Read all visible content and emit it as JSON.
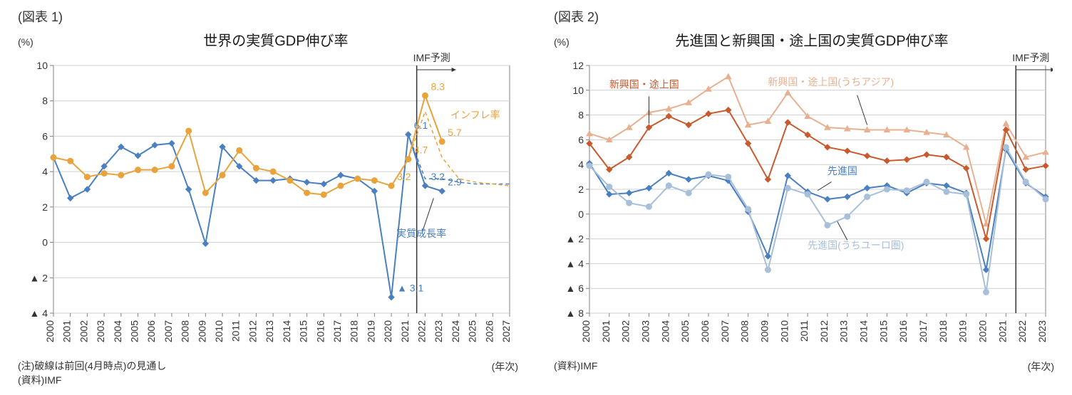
{
  "chart1": {
    "figLabel": "(図表 1)",
    "title": "世界の実質GDP伸び率",
    "yLabel": "(%)",
    "xLabel": "(年次)",
    "forecastLabel": "IMF予測",
    "series": {
      "realGrowth": {
        "label": "実質成長率",
        "color": "#4a7fc0",
        "marker": "diamond",
        "lineWidth": 2,
        "years": [
          2000,
          2001,
          2002,
          2003,
          2004,
          2005,
          2006,
          2007,
          2008,
          2009,
          2010,
          2011,
          2012,
          2013,
          2014,
          2015,
          2016,
          2017,
          2018,
          2019,
          2020,
          2021,
          2022,
          2023
        ],
        "values": [
          4.8,
          2.5,
          3.0,
          4.3,
          5.4,
          4.9,
          5.5,
          5.6,
          3.0,
          -0.07,
          5.4,
          4.3,
          3.5,
          3.5,
          3.6,
          3.4,
          3.3,
          3.8,
          3.6,
          2.9,
          -3.1,
          6.1,
          3.2,
          2.9
        ],
        "valueLabels": {
          "2020": "▲ 3.1",
          "2021": "6.1",
          "2022": "3.2",
          "2023": "2.9"
        }
      },
      "realGrowthDashed": {
        "color": "#4a7fc0",
        "dash": "5,4",
        "lineWidth": 1.5,
        "years": [
          2021,
          2022,
          2023,
          2024,
          2025,
          2026,
          2027
        ],
        "values": [
          6.1,
          3.6,
          3.6,
          3.4,
          3.3,
          3.3,
          3.3
        ]
      },
      "inflation": {
        "label": "インフレ率",
        "color": "#e8a33d",
        "marker": "circle",
        "lineWidth": 2,
        "years": [
          2000,
          2001,
          2002,
          2003,
          2004,
          2005,
          2006,
          2007,
          2008,
          2009,
          2010,
          2011,
          2012,
          2013,
          2014,
          2015,
          2016,
          2017,
          2018,
          2019,
          2020,
          2021,
          2022,
          2023
        ],
        "values": [
          4.8,
          4.6,
          3.7,
          3.9,
          3.8,
          4.1,
          4.1,
          4.3,
          6.3,
          2.8,
          3.8,
          5.2,
          4.2,
          4.0,
          3.5,
          2.8,
          2.7,
          3.2,
          3.6,
          3.5,
          3.2,
          4.7,
          8.3,
          5.7
        ],
        "valueLabels": {
          "2020": "3.2",
          "2021": "4.7",
          "2022": "8.3",
          "2023": "5.7"
        }
      },
      "inflationDashed": {
        "color": "#e8a33d",
        "dash": "5,4",
        "lineWidth": 1.5,
        "years": [
          2021,
          2022,
          2023,
          2024,
          2025,
          2026,
          2027
        ],
        "values": [
          4.7,
          7.4,
          4.8,
          3.6,
          3.4,
          3.3,
          3.2
        ]
      }
    },
    "yAxis": {
      "min": -4,
      "max": 10,
      "ticks": [
        -4,
        -2,
        0,
        2,
        4,
        6,
        8,
        10
      ],
      "tickLabels": [
        "▲ 4",
        "▲ 2",
        "0",
        "2",
        "4",
        "6",
        "8",
        "10"
      ]
    },
    "xAxis": {
      "years": [
        2000,
        2001,
        2002,
        2003,
        2004,
        2005,
        2006,
        2007,
        2008,
        2009,
        2010,
        2011,
        2012,
        2013,
        2014,
        2015,
        2016,
        2017,
        2018,
        2019,
        2020,
        2021,
        2022,
        2023,
        2024,
        2025,
        2026,
        2027
      ]
    },
    "forecastLineYear": 2022,
    "gridColor": "#d0d0d0",
    "axisColor": "#808080",
    "footnote1": "(注)破線は前回(4月時点)の見通し",
    "footnote2": "(資料)IMF"
  },
  "chart2": {
    "figLabel": "(図表 2)",
    "title": "先進国と新興国・途上国の実質GDP伸び率",
    "yLabel": "(%)",
    "xLabel": "(年次)",
    "forecastLabel": "IMF予測",
    "series": {
      "emAsia": {
        "label": "新興国・途上国(うちアジア)",
        "color": "#e8b090",
        "marker": "triangle",
        "lineWidth": 2,
        "years": [
          2000,
          2001,
          2002,
          2003,
          2004,
          2005,
          2006,
          2007,
          2008,
          2009,
          2010,
          2011,
          2012,
          2013,
          2014,
          2015,
          2016,
          2017,
          2018,
          2019,
          2020,
          2021,
          2022,
          2023
        ],
        "values": [
          6.5,
          6.0,
          7.0,
          8.2,
          8.5,
          9.0,
          10.1,
          11.1,
          7.2,
          7.5,
          9.8,
          7.9,
          7.0,
          6.9,
          6.8,
          6.8,
          6.8,
          6.6,
          6.4,
          5.4,
          -0.8,
          7.3,
          4.6,
          5.0
        ]
      },
      "emerging": {
        "label": "新興国・途上国",
        "color": "#c85a2e",
        "marker": "diamond",
        "lineWidth": 2,
        "years": [
          2000,
          2001,
          2002,
          2003,
          2004,
          2005,
          2006,
          2007,
          2008,
          2009,
          2010,
          2011,
          2012,
          2013,
          2014,
          2015,
          2016,
          2017,
          2018,
          2019,
          2020,
          2021,
          2022,
          2023
        ],
        "values": [
          5.7,
          3.6,
          4.6,
          7.0,
          7.9,
          7.2,
          8.1,
          8.4,
          5.7,
          2.8,
          7.4,
          6.4,
          5.4,
          5.1,
          4.7,
          4.3,
          4.4,
          4.8,
          4.6,
          3.7,
          -2.0,
          6.8,
          3.6,
          3.9
        ]
      },
      "advanced": {
        "label": "先進国",
        "color": "#4a7fc0",
        "marker": "diamond",
        "lineWidth": 2,
        "years": [
          2000,
          2001,
          2002,
          2003,
          2004,
          2005,
          2006,
          2007,
          2008,
          2009,
          2010,
          2011,
          2012,
          2013,
          2014,
          2015,
          2016,
          2017,
          2018,
          2019,
          2020,
          2021,
          2022,
          2023
        ],
        "values": [
          4.1,
          1.6,
          1.7,
          2.1,
          3.3,
          2.8,
          3.1,
          2.7,
          0.2,
          -3.4,
          3.1,
          1.8,
          1.2,
          1.4,
          2.1,
          2.3,
          1.7,
          2.5,
          2.3,
          1.7,
          -4.5,
          5.2,
          2.5,
          1.4
        ]
      },
      "euro": {
        "label": "先進国(うちユーロ圏)",
        "color": "#a8bfda",
        "marker": "circle",
        "lineWidth": 2,
        "years": [
          2000,
          2001,
          2002,
          2003,
          2004,
          2005,
          2006,
          2007,
          2008,
          2009,
          2010,
          2011,
          2012,
          2013,
          2014,
          2015,
          2016,
          2017,
          2018,
          2019,
          2020,
          2021,
          2022,
          2023
        ],
        "values": [
          3.9,
          2.2,
          0.9,
          0.6,
          2.3,
          1.7,
          3.2,
          3.0,
          0.4,
          -4.5,
          2.1,
          1.6,
          -0.9,
          -0.2,
          1.4,
          2.0,
          1.9,
          2.6,
          1.8,
          1.6,
          -6.3,
          5.4,
          2.6,
          1.2
        ]
      }
    },
    "yAxis": {
      "min": -8,
      "max": 12,
      "ticks": [
        -8,
        -6,
        -4,
        -2,
        0,
        2,
        4,
        6,
        8,
        10,
        12
      ],
      "tickLabels": [
        "▲ 8",
        "▲ 6",
        "▲ 4",
        "▲ 2",
        "0",
        "2",
        "4",
        "6",
        "8",
        "10",
        "12"
      ]
    },
    "xAxis": {
      "years": [
        2000,
        2001,
        2002,
        2003,
        2004,
        2005,
        2006,
        2007,
        2008,
        2009,
        2010,
        2011,
        2012,
        2013,
        2014,
        2015,
        2016,
        2017,
        2018,
        2019,
        2020,
        2021,
        2022,
        2023
      ]
    },
    "forecastLineYear": 2022,
    "gridColor": "#d0d0d0",
    "axisColor": "#808080",
    "footnote": "(資料)IMF"
  }
}
